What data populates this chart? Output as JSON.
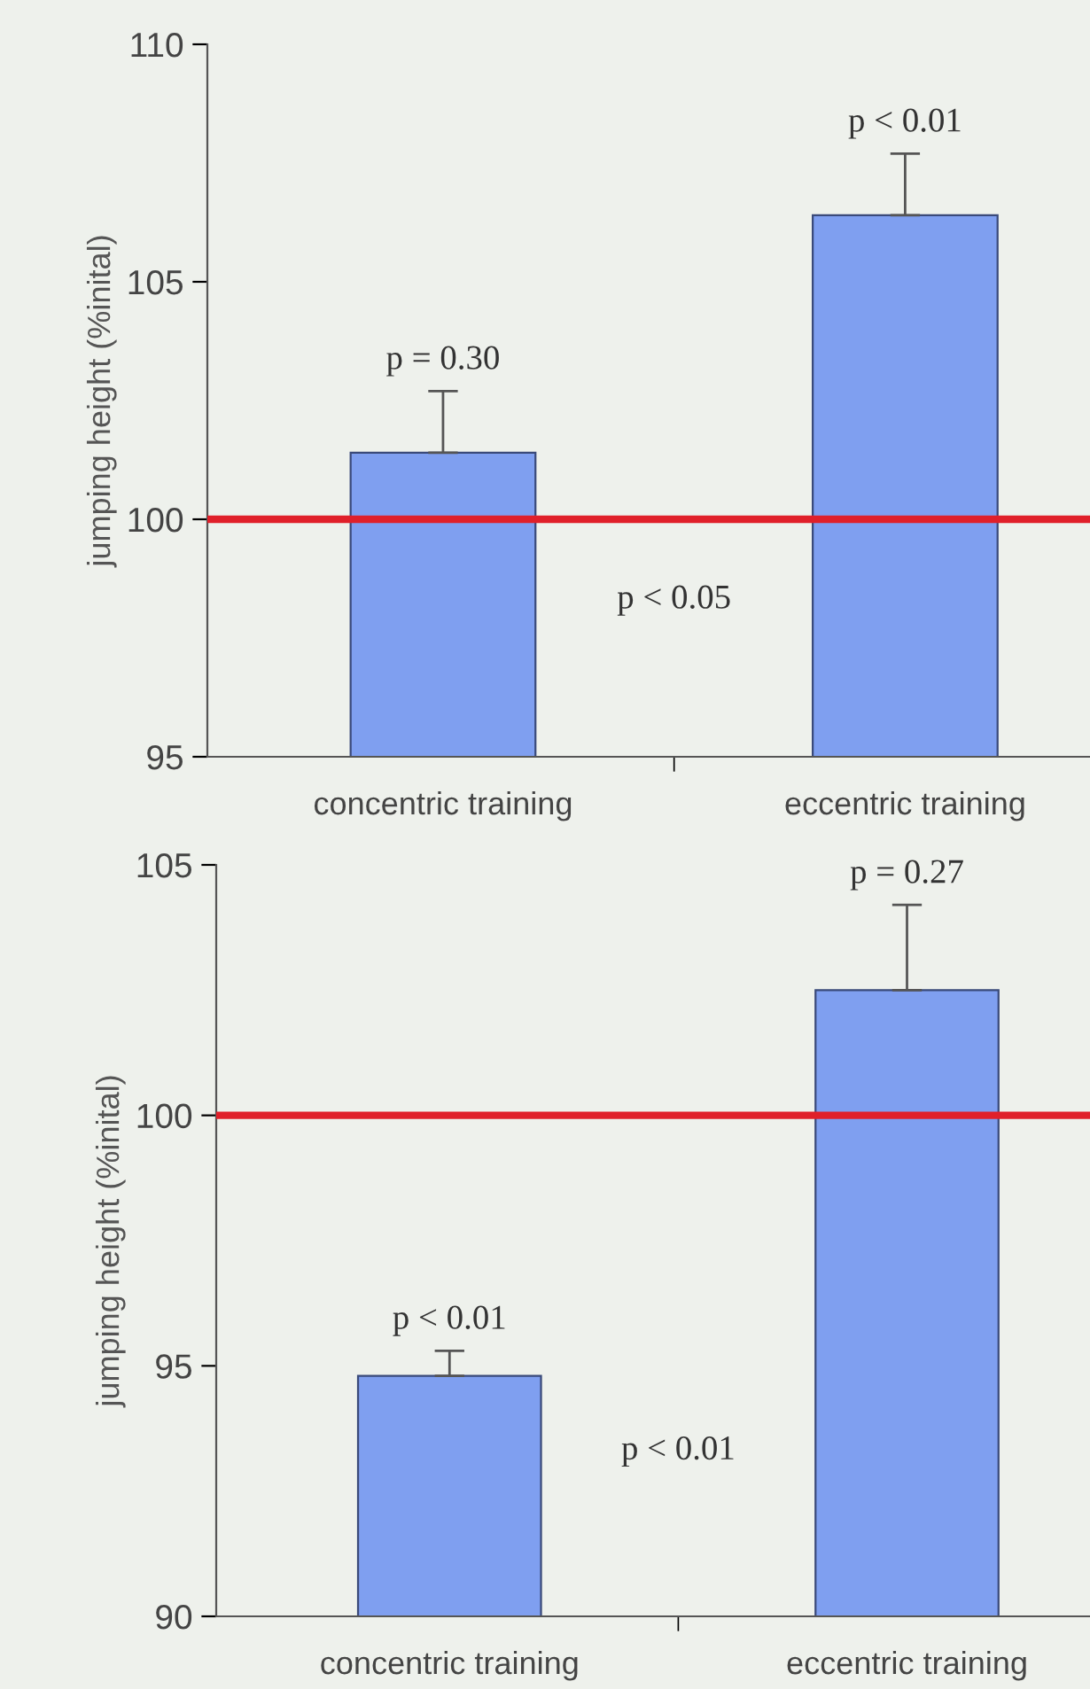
{
  "chart_data": [
    {
      "type": "bar",
      "categories": [
        "concentric training",
        "eccentric training"
      ],
      "values": [
        101.4,
        106.4
      ],
      "errors": [
        1.3,
        1.3
      ],
      "color": "#7f9ff0",
      "ylabel": "jumping height (%inital)",
      "ylim": [
        95,
        110
      ],
      "yticks": [
        95,
        100,
        105,
        110
      ],
      "grid": false,
      "ref_lines": [
        {
          "axis": "y",
          "value": 100,
          "color": "#e0202a"
        }
      ],
      "annotations": [
        {
          "text": "p = 0.30",
          "x": "concentric training",
          "y": 102.7
        },
        {
          "text": "p < 0.01",
          "x": "eccentric training",
          "y": 107.7
        },
        "p < 0.05"
      ]
    },
    {
      "type": "bar",
      "categories": [
        "concentric training",
        "eccentric training"
      ],
      "values": [
        94.8,
        102.5
      ],
      "errors": [
        0.5,
        1.7
      ],
      "color": "#7f9ff0",
      "ylabel": "jumping height (%inital)",
      "ylim": [
        90,
        105
      ],
      "yticks": [
        90,
        95,
        100,
        105
      ],
      "grid": false,
      "ref_lines": [
        {
          "axis": "y",
          "value": 100,
          "color": "#e0202a"
        }
      ],
      "annotations": [
        {
          "text": "p < 0.01",
          "x": "concentric training",
          "y": 95.3
        },
        {
          "text": "p = 0.27",
          "x": "eccentric training",
          "y": 104.2
        },
        "p < 0.01"
      ]
    }
  ]
}
